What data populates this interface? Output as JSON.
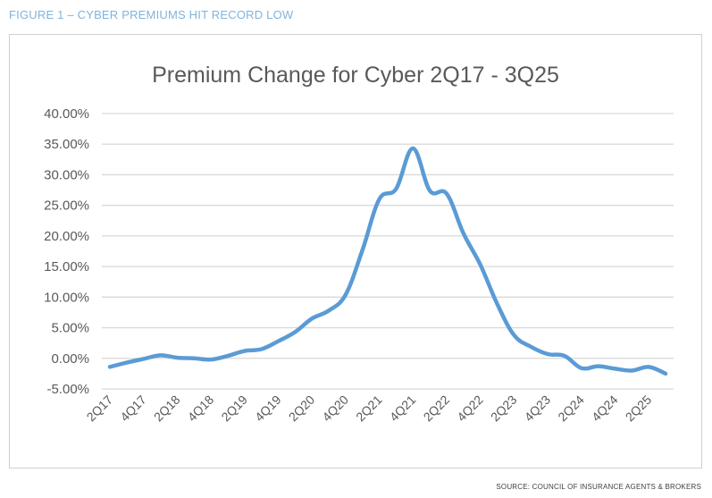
{
  "figure_title": "FIGURE 1 – CYBER PREMIUMS HIT RECORD LOW",
  "source": "SOURCE: COUNCIL OF INSURANCE AGENTS & BROKERS",
  "colors": {
    "line": "#5b9bd5",
    "grid": "#d9d9d9",
    "figure_title": "#7fb4dc",
    "text": "#595959"
  },
  "chart_data": {
    "type": "line",
    "title": "Premium Change for Cyber 2Q17 - 3Q25",
    "xlabel": "",
    "ylabel": "",
    "ylim": [
      -5,
      40
    ],
    "grid": true,
    "legend": "none",
    "y_ticks": [
      "-5.00%",
      "0.00%",
      "5.00%",
      "10.00%",
      "15.00%",
      "20.00%",
      "25.00%",
      "30.00%",
      "35.00%",
      "40.00%"
    ],
    "y_tick_values": [
      -5,
      0,
      5,
      10,
      15,
      20,
      25,
      30,
      35,
      40
    ],
    "x": [
      "2Q17",
      "3Q17",
      "4Q17",
      "1Q18",
      "2Q18",
      "3Q18",
      "4Q18",
      "1Q19",
      "2Q19",
      "3Q19",
      "4Q19",
      "1Q20",
      "2Q20",
      "3Q20",
      "4Q20",
      "1Q21",
      "2Q21",
      "3Q21",
      "4Q21",
      "1Q22",
      "2Q22",
      "3Q22",
      "4Q22",
      "1Q23",
      "2Q23",
      "3Q23",
      "4Q23",
      "1Q24",
      "2Q24",
      "3Q24",
      "4Q24",
      "1Q25",
      "2Q25",
      "3Q25"
    ],
    "x_tick_labels": [
      "2Q17",
      "4Q17",
      "2Q18",
      "4Q18",
      "2Q19",
      "4Q19",
      "2Q20",
      "4Q20",
      "2Q21",
      "4Q21",
      "2Q22",
      "4Q22",
      "2Q23",
      "4Q23",
      "2Q24",
      "4Q24",
      "2Q25"
    ],
    "series": [
      {
        "name": "Premium Change",
        "values": [
          -1.4,
          -0.7,
          -0.1,
          0.5,
          0.1,
          0.0,
          -0.2,
          0.4,
          1.2,
          1.5,
          2.8,
          4.3,
          6.5,
          7.8,
          10.4,
          17.7,
          26.0,
          27.7,
          34.3,
          27.4,
          26.9,
          20.4,
          15.3,
          8.9,
          3.8,
          1.9,
          0.7,
          0.4,
          -1.6,
          -1.3,
          -1.7,
          -2.0,
          -1.4,
          -2.5
        ]
      }
    ]
  }
}
